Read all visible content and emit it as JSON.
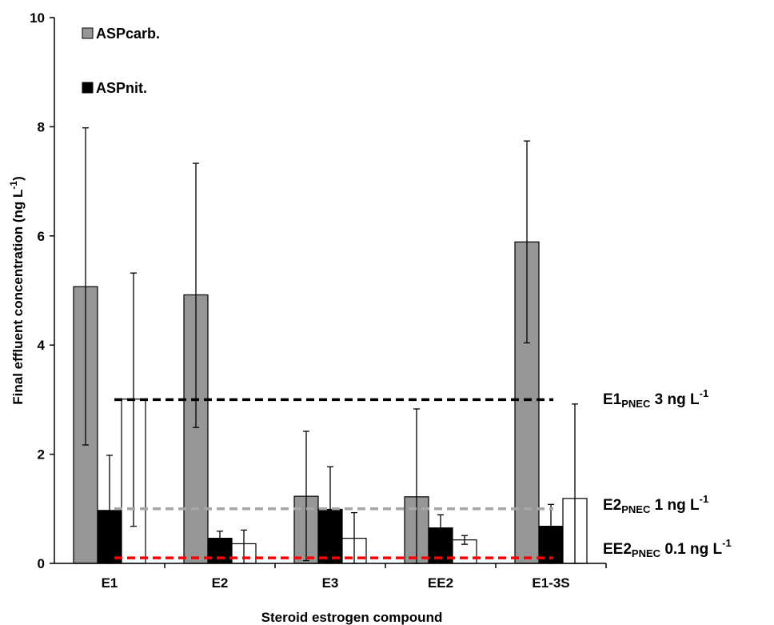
{
  "chart_data": {
    "type": "bar",
    "xlabel": "Steroid estrogen compound",
    "ylabel": {
      "text": "Final effluent  concentration (ng L",
      "sup": "-1",
      "tail": ")"
    },
    "ylim": [
      0,
      10
    ],
    "yticks": [
      0,
      2,
      4,
      6,
      8,
      10
    ],
    "grid": false,
    "legend_position": "top-left",
    "categories": [
      "E1",
      "E2",
      "E3",
      "EE2",
      "E1-3S"
    ],
    "series": [
      {
        "name": "ASPcarb.",
        "color": "#969696",
        "values": [
          5.07,
          4.92,
          1.23,
          1.22,
          5.89
        ],
        "error_high": [
          7.98,
          7.33,
          2.42,
          2.83,
          7.74
        ],
        "error_low": [
          2.17,
          2.49,
          0.05,
          0.0,
          4.04
        ]
      },
      {
        "name": "ASPnit.",
        "color": "#000000",
        "values": [
          0.97,
          0.46,
          0.99,
          0.65,
          0.68
        ],
        "error_high": [
          1.98,
          0.59,
          1.77,
          0.89,
          1.08
        ],
        "error_low": [
          0.0,
          0.34,
          0.0,
          0.41,
          0.0
        ]
      },
      {
        "name": "",
        "color": "#ffffff",
        "values": [
          3.01,
          0.36,
          0.46,
          0.43,
          1.19
        ],
        "error_high": [
          5.32,
          0.61,
          0.93,
          0.51,
          2.92
        ],
        "error_low": [
          0.68,
          0.0,
          0.0,
          0.35,
          0.0
        ]
      }
    ],
    "thresholds": [
      {
        "value": 3.0,
        "color": "#000000",
        "label_main": "E1",
        "label_sub": "PNEC",
        "label_rest": " 3 ng L",
        "label_sup": "-1"
      },
      {
        "value": 1.0,
        "color": "#a6a6a6",
        "label_main": "E2",
        "label_sub": "PNEC",
        "label_rest": " 1 ng L",
        "label_sup": "-1"
      },
      {
        "value": 0.1,
        "color": "#ff0000",
        "label_main": "EE2",
        "label_sub": "PNEC",
        "label_rest": " 0.1 ng L",
        "label_sup": "-1"
      }
    ]
  }
}
